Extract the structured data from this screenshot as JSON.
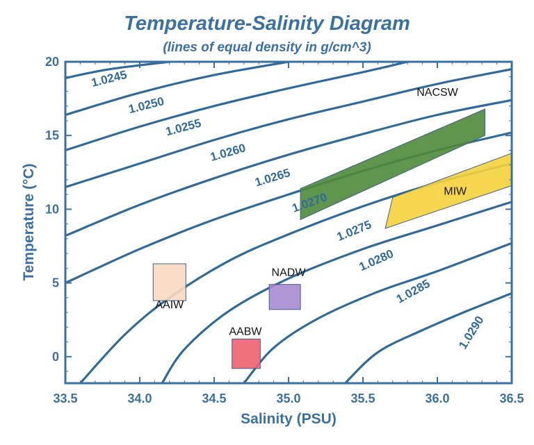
{
  "chart_data": {
    "type": "line",
    "title": "Temperature-Salinity Diagram",
    "subtitle": "(lines of equal density in g/cm^3)",
    "xlabel": "Salinity (PSU)",
    "ylabel": "Temperature (°C)",
    "xlim": [
      33.5,
      36.5
    ],
    "ylim": [
      -1.8,
      20
    ],
    "xticks": [
      "33.5",
      "34.0",
      "34.5",
      "35.0",
      "35.5",
      "36.0",
      "36.5"
    ],
    "yticks": [
      "0",
      "5",
      "10",
      "15",
      "20"
    ],
    "grid": false,
    "isopycnals": [
      {
        "label": "1.0245",
        "points": [
          [
            33.5,
            18.9
          ],
          [
            33.8,
            19.5
          ],
          [
            34.2,
            20.0
          ]
        ]
      },
      {
        "label": "1.0250",
        "points": [
          [
            33.5,
            16.4
          ],
          [
            34.0,
            17.9
          ],
          [
            34.5,
            19.1
          ],
          [
            35.0,
            20.0
          ]
        ]
      },
      {
        "label": "1.0255",
        "points": [
          [
            33.5,
            14.0
          ],
          [
            34.0,
            15.6
          ],
          [
            34.5,
            17.0
          ],
          [
            35.0,
            18.2
          ],
          [
            35.5,
            19.3
          ],
          [
            35.8,
            20.0
          ]
        ]
      },
      {
        "label": "1.0260",
        "points": [
          [
            33.5,
            11.5
          ],
          [
            34.0,
            13.1
          ],
          [
            34.5,
            14.7
          ],
          [
            35.0,
            16.1
          ],
          [
            35.5,
            17.3
          ],
          [
            36.0,
            18.5
          ],
          [
            36.5,
            19.5
          ]
        ]
      },
      {
        "label": "1.0265",
        "points": [
          [
            33.5,
            8.2
          ],
          [
            34.0,
            10.3
          ],
          [
            34.5,
            12.1
          ],
          [
            35.0,
            13.7
          ],
          [
            35.5,
            15.1
          ],
          [
            36.0,
            16.4
          ],
          [
            36.5,
            17.4
          ]
        ]
      },
      {
        "label": "1.0270",
        "points": [
          [
            33.5,
            5.0
          ],
          [
            34.0,
            7.3
          ],
          [
            34.5,
            9.3
          ],
          [
            35.0,
            11.0
          ],
          [
            35.5,
            12.6
          ],
          [
            36.0,
            14.0
          ],
          [
            36.5,
            15.2
          ]
        ]
      },
      {
        "label": "1.0275",
        "points": [
          [
            33.6,
            -1.8
          ],
          [
            33.9,
            1.5
          ],
          [
            34.2,
            4.0
          ],
          [
            34.6,
            6.5
          ],
          [
            35.0,
            8.3
          ],
          [
            35.5,
            10.2
          ],
          [
            36.0,
            11.8
          ],
          [
            36.5,
            13.1
          ]
        ]
      },
      {
        "label": "1.0280",
        "points": [
          [
            34.15,
            -1.8
          ],
          [
            34.3,
            0.5
          ],
          [
            34.6,
            3.1
          ],
          [
            35.0,
            5.3
          ],
          [
            35.5,
            7.3
          ],
          [
            36.0,
            8.9
          ],
          [
            36.5,
            10.5
          ]
        ]
      },
      {
        "label": "1.0285",
        "points": [
          [
            34.7,
            -1.8
          ],
          [
            34.9,
            0.6
          ],
          [
            35.2,
            2.6
          ],
          [
            35.6,
            4.4
          ],
          [
            36.0,
            5.8
          ],
          [
            36.5,
            7.7
          ]
        ]
      },
      {
        "label": "1.0290",
        "points": [
          [
            35.38,
            -1.8
          ],
          [
            35.6,
            0.3
          ],
          [
            35.9,
            1.8
          ],
          [
            36.2,
            3.1
          ],
          [
            36.5,
            4.3
          ]
        ]
      }
    ],
    "isopycnal_labels": [
      {
        "text": "1.0245",
        "x": 33.8,
        "y": 18.6,
        "angle": -14
      },
      {
        "text": "1.0250",
        "x": 34.05,
        "y": 16.8,
        "angle": -14
      },
      {
        "text": "1.0255",
        "x": 34.3,
        "y": 15.3,
        "angle": -15
      },
      {
        "text": "1.0260",
        "x": 34.6,
        "y": 13.6,
        "angle": -16
      },
      {
        "text": "1.0265",
        "x": 34.9,
        "y": 11.9,
        "angle": -17
      },
      {
        "text": "1.0270",
        "x": 35.15,
        "y": 10.2,
        "angle": -20
      },
      {
        "text": "1.0275",
        "x": 35.45,
        "y": 8.3,
        "angle": -22
      },
      {
        "text": "1.0280",
        "x": 35.6,
        "y": 6.3,
        "angle": -24
      },
      {
        "text": "1.0285",
        "x": 35.85,
        "y": 4.2,
        "angle": -29
      },
      {
        "text": "1.0290",
        "x": 36.25,
        "y": 1.5,
        "angle": -58
      }
    ],
    "water_masses": [
      {
        "name": "NACSW",
        "shape": "polygon",
        "points": [
          [
            35.08,
            9.3
          ],
          [
            35.08,
            11.4
          ],
          [
            36.32,
            16.8
          ],
          [
            36.32,
            15.0
          ]
        ],
        "fill": "#4f8a3a",
        "label_at": [
          36.0,
          17.4
        ]
      },
      {
        "name": "MIW",
        "shape": "polygon",
        "points": [
          [
            35.65,
            8.7
          ],
          [
            35.7,
            10.8
          ],
          [
            36.5,
            13.8
          ],
          [
            36.5,
            11.6
          ]
        ],
        "fill": "#f5d23b",
        "label_at": [
          36.12,
          10.7
        ]
      },
      {
        "name": "AAIW",
        "shape": "rect",
        "x": [
          34.09,
          34.31
        ],
        "y": [
          3.8,
          6.3
        ],
        "fill": "#f8d9c0",
        "label_at": [
          34.2,
          3.0
        ]
      },
      {
        "name": "NADW",
        "shape": "rect",
        "x": [
          34.87,
          35.08
        ],
        "y": [
          3.2,
          4.9
        ],
        "fill": "#a98bd3",
        "label_at": [
          35.0,
          5.2
        ]
      },
      {
        "name": "AABW",
        "shape": "rect",
        "x": [
          34.62,
          34.81
        ],
        "y": [
          -0.8,
          1.2
        ],
        "fill": "#f06070",
        "label_at": [
          34.71,
          1.2
        ]
      }
    ],
    "colors": {
      "axis": "#3a70a3",
      "isopycnal": "#2f6a9c",
      "box_edge": "#3d5f84"
    }
  }
}
